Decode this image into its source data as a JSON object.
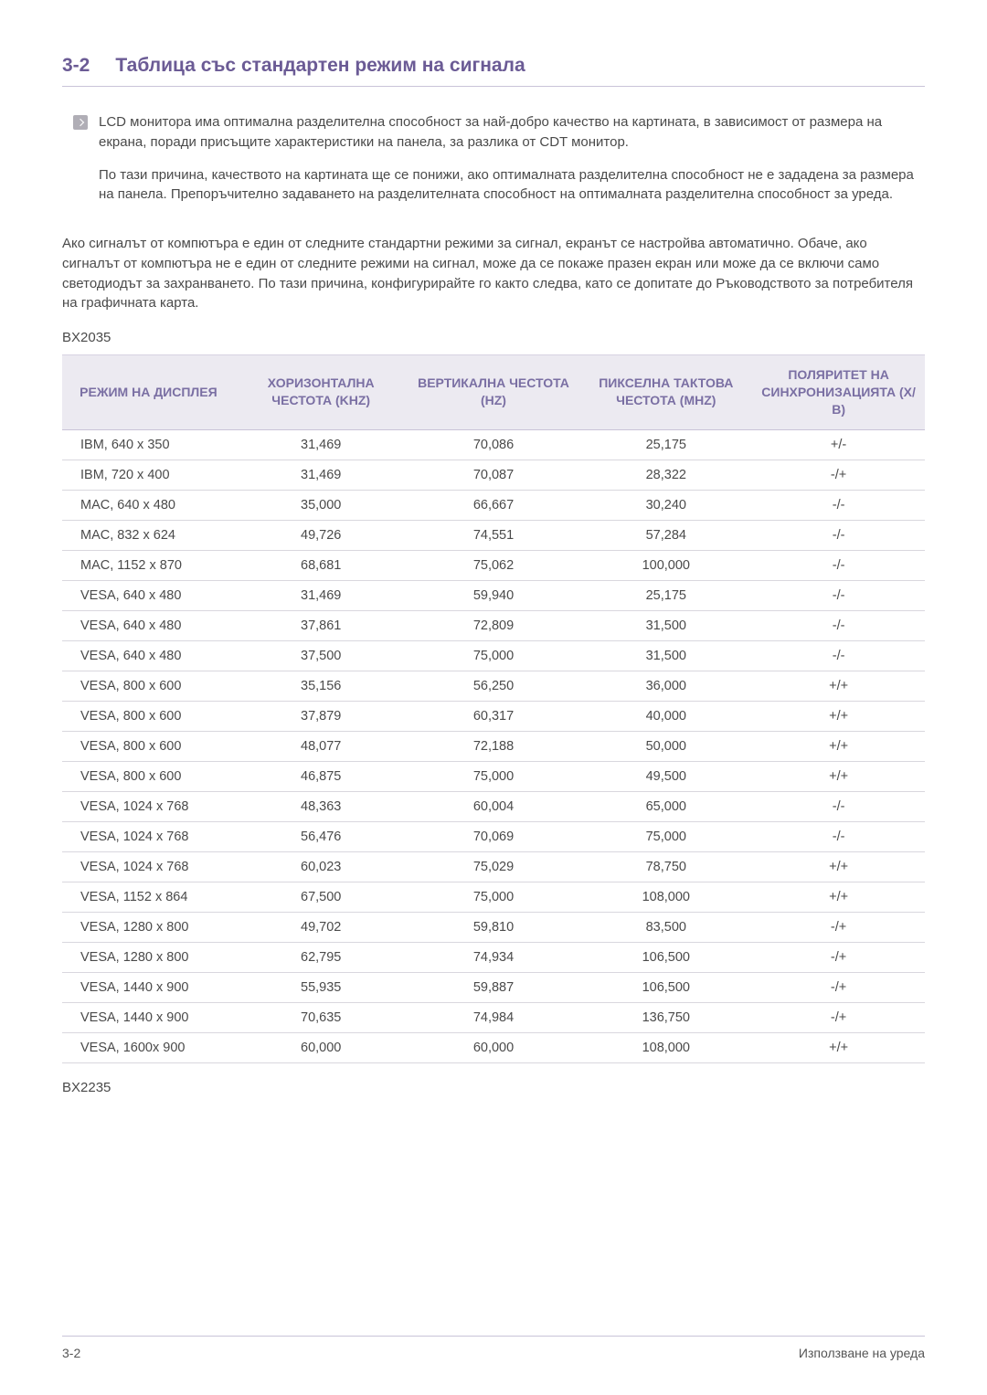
{
  "section": {
    "num": "3-2",
    "title": "Таблица със стандартен режим на сигнала"
  },
  "note": {
    "p1": "LCD монитора има оптимална разделителна способност за най-добро качество на картината, в зависимост от размера на екрана, поради присъщите характеристики на панела, за разлика от CDT монитор.",
    "p2": "По тази причина, качеството на картината ще се понижи, ако оптималната разделителна способност не е зададена за размера на панела. Препоръчително задаването на разделителната способност на оптималната разделителна способност за уреда."
  },
  "body_para": "Ако сигналът от компютъра е един от следните стандартни режими за сигнал, екранът се настройва автоматично. Обаче, ако сигналът от компютъра не е един от следните режими на сигнал, може да се покаже празен екран или може да се включи само светодиодът за захранването. По тази причина, конфигурирайте го както следва, като се допитате до Ръководството за потребителя на графичната карта.",
  "model1": "BX2035",
  "model2": "BX2235",
  "table": {
    "headers": {
      "c1": "РЕЖИМ НА ДИСПЛЕЯ",
      "c2": "ХОРИЗОНТАЛНА ЧЕСТОТА (KHZ)",
      "c3": "ВЕРТИКАЛНА ЧЕСТОТА (HZ)",
      "c4": "ПИКСЕЛНА ТАКТОВА ЧЕСТОТА (MHZ)",
      "c5": "ПОЛЯРИТЕТ НА СИНХРОНИЗАЦИЯТА (Х/В)"
    },
    "rows": [
      {
        "c1": "IBM, 640 x 350",
        "c2": "31,469",
        "c3": "70,086",
        "c4": "25,175",
        "c5": "+/-"
      },
      {
        "c1": "IBM, 720 x 400",
        "c2": "31,469",
        "c3": "70,087",
        "c4": "28,322",
        "c5": "-/+"
      },
      {
        "c1": "MAC, 640 x 480",
        "c2": "35,000",
        "c3": "66,667",
        "c4": "30,240",
        "c5": "-/-"
      },
      {
        "c1": "MAC, 832 x 624",
        "c2": "49,726",
        "c3": "74,551",
        "c4": "57,284",
        "c5": "-/-"
      },
      {
        "c1": "MAC, 1152 x 870",
        "c2": "68,681",
        "c3": "75,062",
        "c4": "100,000",
        "c5": "-/-"
      },
      {
        "c1": "VESA, 640 x 480",
        "c2": "31,469",
        "c3": "59,940",
        "c4": "25,175",
        "c5": "-/-"
      },
      {
        "c1": "VESA, 640 x 480",
        "c2": "37,861",
        "c3": "72,809",
        "c4": "31,500",
        "c5": "-/-"
      },
      {
        "c1": "VESA, 640 x 480",
        "c2": "37,500",
        "c3": "75,000",
        "c4": "31,500",
        "c5": "-/-"
      },
      {
        "c1": "VESA, 800 x 600",
        "c2": "35,156",
        "c3": "56,250",
        "c4": "36,000",
        "c5": "+/+"
      },
      {
        "c1": "VESA, 800 x 600",
        "c2": "37,879",
        "c3": "60,317",
        "c4": "40,000",
        "c5": "+/+"
      },
      {
        "c1": "VESA, 800 x 600",
        "c2": "48,077",
        "c3": "72,188",
        "c4": "50,000",
        "c5": "+/+"
      },
      {
        "c1": "VESA, 800 x 600",
        "c2": "46,875",
        "c3": "75,000",
        "c4": "49,500",
        "c5": "+/+"
      },
      {
        "c1": "VESA, 1024 x 768",
        "c2": "48,363",
        "c3": "60,004",
        "c4": "65,000",
        "c5": "-/-"
      },
      {
        "c1": "VESA, 1024 x 768",
        "c2": "56,476",
        "c3": "70,069",
        "c4": "75,000",
        "c5": "-/-"
      },
      {
        "c1": "VESA, 1024 x 768",
        "c2": "60,023",
        "c3": "75,029",
        "c4": "78,750",
        "c5": "+/+"
      },
      {
        "c1": "VESA, 1152 x 864",
        "c2": "67,500",
        "c3": "75,000",
        "c4": "108,000",
        "c5": "+/+"
      },
      {
        "c1": "VESA, 1280 x 800",
        "c2": "49,702",
        "c3": "59,810",
        "c4": "83,500",
        "c5": "-/+"
      },
      {
        "c1": "VESA, 1280 x 800",
        "c2": "62,795",
        "c3": "74,934",
        "c4": "106,500",
        "c5": "-/+"
      },
      {
        "c1": "VESA, 1440 x 900",
        "c2": "55,935",
        "c3": "59,887",
        "c4": "106,500",
        "c5": "-/+"
      },
      {
        "c1": "VESA, 1440 x 900",
        "c2": "70,635",
        "c3": "74,984",
        "c4": "136,750",
        "c5": "-/+"
      },
      {
        "c1": "VESA, 1600x 900",
        "c2": "60,000",
        "c3": "60,000",
        "c4": "108,000",
        "c5": "+/+"
      }
    ]
  },
  "footer": {
    "left": "3-2",
    "right": "Използване на уреда"
  }
}
